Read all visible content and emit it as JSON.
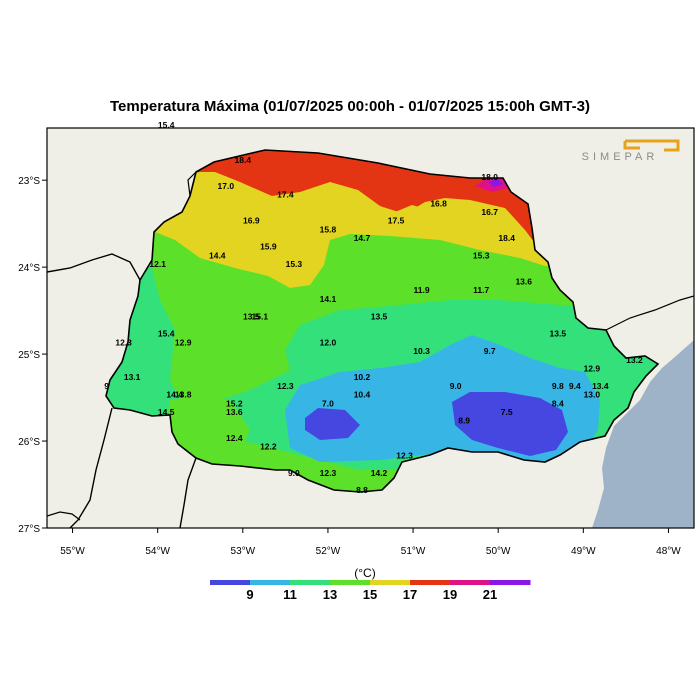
{
  "title": "Temperatura Máxima (01/07/2025 00:00h - 01/07/2025 15:00h GMT-3)",
  "logo_text": "SIMEPAR",
  "colors": {
    "c9": "#4646e0",
    "c11": "#37b6e6",
    "c13": "#34e07a",
    "c15": "#5de02a",
    "c17": "#e2d420",
    "c19": "#e33514",
    "c21": "#de1288",
    "c23": "#8a16e8",
    "land": "#f0efe7",
    "ocean": "#9fb3c8"
  },
  "chart_data": {
    "type": "heatmap",
    "title": "Temperatura Máxima (01/07/2025 00:00h - 01/07/2025 15:00h GMT-3)",
    "unit": "(°C)",
    "lon_ticks": [
      "55°W",
      "54°W",
      "53°W",
      "52°W",
      "51°W",
      "50°W",
      "49°W",
      "48°W"
    ],
    "lat_ticks": [
      "23°S",
      "24°S",
      "25°S",
      "26°S",
      "27°S"
    ],
    "lon_range": [
      -55.3,
      -47.7
    ],
    "lat_range": [
      -27.0,
      -22.4
    ],
    "colorbar_ticks": [
      "9",
      "11",
      "13",
      "15",
      "17",
      "19",
      "21"
    ],
    "stations": [
      {
        "lon": -53.9,
        "lat": -22.4,
        "v": "15.4"
      },
      {
        "lon": -53.0,
        "lat": -22.8,
        "v": "18.4"
      },
      {
        "lon": -53.2,
        "lat": -23.1,
        "v": "17.0"
      },
      {
        "lon": -52.5,
        "lat": -23.2,
        "v": "17.4"
      },
      {
        "lon": -52.9,
        "lat": -23.5,
        "v": "16.9"
      },
      {
        "lon": -52.0,
        "lat": -23.6,
        "v": "15.8"
      },
      {
        "lon": -51.6,
        "lat": -23.7,
        "v": "14.7"
      },
      {
        "lon": -51.2,
        "lat": -23.5,
        "v": "17.5"
      },
      {
        "lon": -50.7,
        "lat": -23.3,
        "v": "16.8"
      },
      {
        "lon": -50.1,
        "lat": -23.0,
        "v": "18.0"
      },
      {
        "lon": -50.1,
        "lat": -23.4,
        "v": "16.7"
      },
      {
        "lon": -49.9,
        "lat": -23.7,
        "v": "18.4"
      },
      {
        "lon": -50.2,
        "lat": -23.9,
        "v": "15.3"
      },
      {
        "lon": -49.7,
        "lat": -24.2,
        "v": "13.6"
      },
      {
        "lon": -53.3,
        "lat": -23.9,
        "v": "14.4"
      },
      {
        "lon": -52.7,
        "lat": -23.8,
        "v": "15.9"
      },
      {
        "lon": -54.0,
        "lat": -24.0,
        "v": "12.1"
      },
      {
        "lon": -52.4,
        "lat": -24.0,
        "v": "15.3"
      },
      {
        "lon": -52.0,
        "lat": -24.4,
        "v": "14.1"
      },
      {
        "lon": -50.9,
        "lat": -24.3,
        "v": "11.9"
      },
      {
        "lon": -50.2,
        "lat": -24.3,
        "v": "11.7"
      },
      {
        "lon": -51.4,
        "lat": -24.6,
        "v": "13.5"
      },
      {
        "lon": -49.3,
        "lat": -24.8,
        "v": "13.5"
      },
      {
        "lon": -52.9,
        "lat": -24.6,
        "v": "13.5"
      },
      {
        "lon": -52.8,
        "lat": -24.6,
        "v": "15.1"
      },
      {
        "lon": -53.9,
        "lat": -24.8,
        "v": "15.4"
      },
      {
        "lon": -53.7,
        "lat": -24.9,
        "v": "12.9"
      },
      {
        "lon": -52.0,
        "lat": -24.9,
        "v": "12.0"
      },
      {
        "lon": -54.4,
        "lat": -24.9,
        "v": "12.3"
      },
      {
        "lon": -50.9,
        "lat": -25.0,
        "v": "10.3"
      },
      {
        "lon": -50.1,
        "lat": -25.0,
        "v": "9.7"
      },
      {
        "lon": -48.9,
        "lat": -25.2,
        "v": "12.9"
      },
      {
        "lon": -48.4,
        "lat": -25.1,
        "v": "13.2"
      },
      {
        "lon": -49.1,
        "lat": -25.4,
        "v": "9.4"
      },
      {
        "lon": -49.3,
        "lat": -25.4,
        "v": "9.8"
      },
      {
        "lon": -48.8,
        "lat": -25.4,
        "v": "13.4"
      },
      {
        "lon": -48.9,
        "lat": -25.5,
        "v": "13.0"
      },
      {
        "lon": -54.6,
        "lat": -25.4,
        "v": "9"
      },
      {
        "lon": -54.3,
        "lat": -25.3,
        "v": "13.1"
      },
      {
        "lon": -53.8,
        "lat": -25.5,
        "v": "14.4"
      },
      {
        "lon": -53.7,
        "lat": -25.5,
        "v": "13.8"
      },
      {
        "lon": -53.1,
        "lat": -25.6,
        "v": "15.2"
      },
      {
        "lon": -53.9,
        "lat": -25.7,
        "v": "14.5"
      },
      {
        "lon": -53.1,
        "lat": -25.7,
        "v": "13.6"
      },
      {
        "lon": -52.5,
        "lat": -25.4,
        "v": "12.3"
      },
      {
        "lon": -51.6,
        "lat": -25.3,
        "v": "10.2"
      },
      {
        "lon": -51.6,
        "lat": -25.5,
        "v": "10.4"
      },
      {
        "lon": -50.5,
        "lat": -25.4,
        "v": "9.0"
      },
      {
        "lon": -52.0,
        "lat": -25.6,
        "v": "7.0"
      },
      {
        "lon": -49.3,
        "lat": -25.6,
        "v": "8.4"
      },
      {
        "lon": -49.9,
        "lat": -25.7,
        "v": "7.5"
      },
      {
        "lon": -50.4,
        "lat": -25.8,
        "v": "8.9"
      },
      {
        "lon": -53.1,
        "lat": -26.0,
        "v": "12.4"
      },
      {
        "lon": -52.7,
        "lat": -26.1,
        "v": "12.2"
      },
      {
        "lon": -51.1,
        "lat": -26.2,
        "v": "12.3"
      },
      {
        "lon": -51.4,
        "lat": -26.4,
        "v": "14.2"
      },
      {
        "lon": -52.4,
        "lat": -26.4,
        "v": "9.0"
      },
      {
        "lon": -52.0,
        "lat": -26.4,
        "v": "12.3"
      },
      {
        "lon": -51.6,
        "lat": -26.6,
        "v": "8.8"
      }
    ]
  }
}
